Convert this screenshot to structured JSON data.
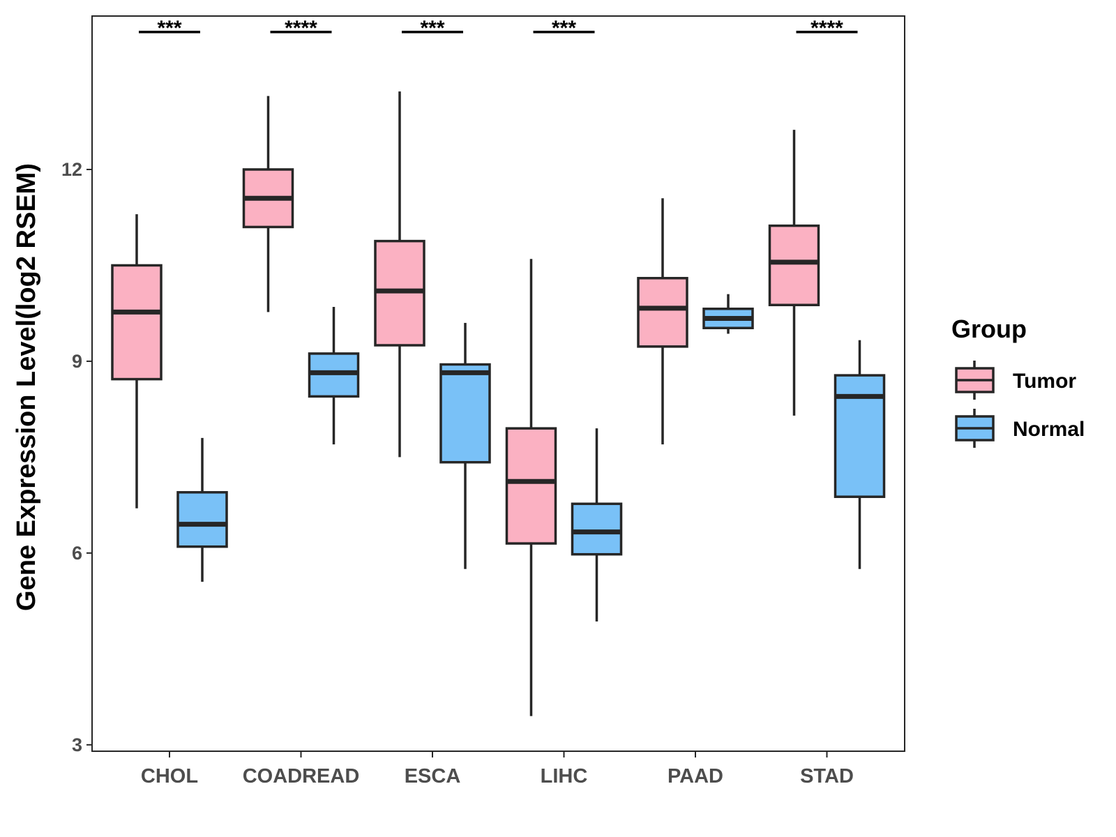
{
  "chart_data": {
    "type": "boxplot",
    "title": "",
    "xlabel": "",
    "ylabel": "Gene Expression Level(log2 RSEM)",
    "ylim": [
      2.9,
      14.4
    ],
    "yticks": [
      3,
      6,
      9,
      12
    ],
    "categories": [
      "CHOL",
      "COADREAD",
      "ESCA",
      "LIHC",
      "PAAD",
      "STAD"
    ],
    "legend": {
      "title": "Group",
      "position": "right"
    },
    "colors": {
      "Tumor": "#FBB1C2",
      "Normal": "#79C1F7",
      "outline": "#262626"
    },
    "series": [
      {
        "name": "Tumor",
        "boxes": [
          {
            "category": "CHOL",
            "whislo": 6.7,
            "q1": 8.72,
            "med": 9.77,
            "q3": 10.5,
            "whishi": 11.3
          },
          {
            "category": "COADREAD",
            "whislo": 9.77,
            "q1": 11.1,
            "med": 11.55,
            "q3": 12.0,
            "whishi": 13.15
          },
          {
            "category": "ESCA",
            "whislo": 7.5,
            "q1": 9.25,
            "med": 10.1,
            "q3": 10.88,
            "whishi": 13.22
          },
          {
            "category": "LIHC",
            "whislo": 3.45,
            "q1": 6.15,
            "med": 7.12,
            "q3": 7.95,
            "whishi": 10.6
          },
          {
            "category": "PAAD",
            "whislo": 7.7,
            "q1": 9.23,
            "med": 9.83,
            "q3": 10.3,
            "whishi": 11.55
          },
          {
            "category": "STAD",
            "whislo": 8.15,
            "q1": 9.88,
            "med": 10.55,
            "q3": 11.12,
            "whishi": 12.62
          }
        ]
      },
      {
        "name": "Normal",
        "boxes": [
          {
            "category": "CHOL",
            "whislo": 5.55,
            "q1": 6.1,
            "med": 6.45,
            "q3": 6.95,
            "whishi": 7.8
          },
          {
            "category": "COADREAD",
            "whislo": 7.7,
            "q1": 8.45,
            "med": 8.82,
            "q3": 9.12,
            "whishi": 9.85
          },
          {
            "category": "ESCA",
            "whislo": 5.75,
            "q1": 7.42,
            "med": 8.82,
            "q3": 8.95,
            "whishi": 9.6
          },
          {
            "category": "LIHC",
            "whislo": 4.93,
            "q1": 5.98,
            "med": 6.33,
            "q3": 6.77,
            "whishi": 7.95
          },
          {
            "category": "PAAD",
            "whislo": 9.43,
            "q1": 9.52,
            "med": 9.67,
            "q3": 9.82,
            "whishi": 10.05
          },
          {
            "category": "STAD",
            "whislo": 5.75,
            "q1": 6.88,
            "med": 8.45,
            "q3": 8.78,
            "whishi": 9.33
          }
        ]
      }
    ],
    "significance": [
      {
        "category": "CHOL",
        "label": "***"
      },
      {
        "category": "COADREAD",
        "label": "****"
      },
      {
        "category": "ESCA",
        "label": "***"
      },
      {
        "category": "LIHC",
        "label": "***"
      },
      {
        "category": "PAAD",
        "label": ""
      },
      {
        "category": "STAD",
        "label": "****"
      }
    ],
    "significance_line_y": 14.15
  }
}
